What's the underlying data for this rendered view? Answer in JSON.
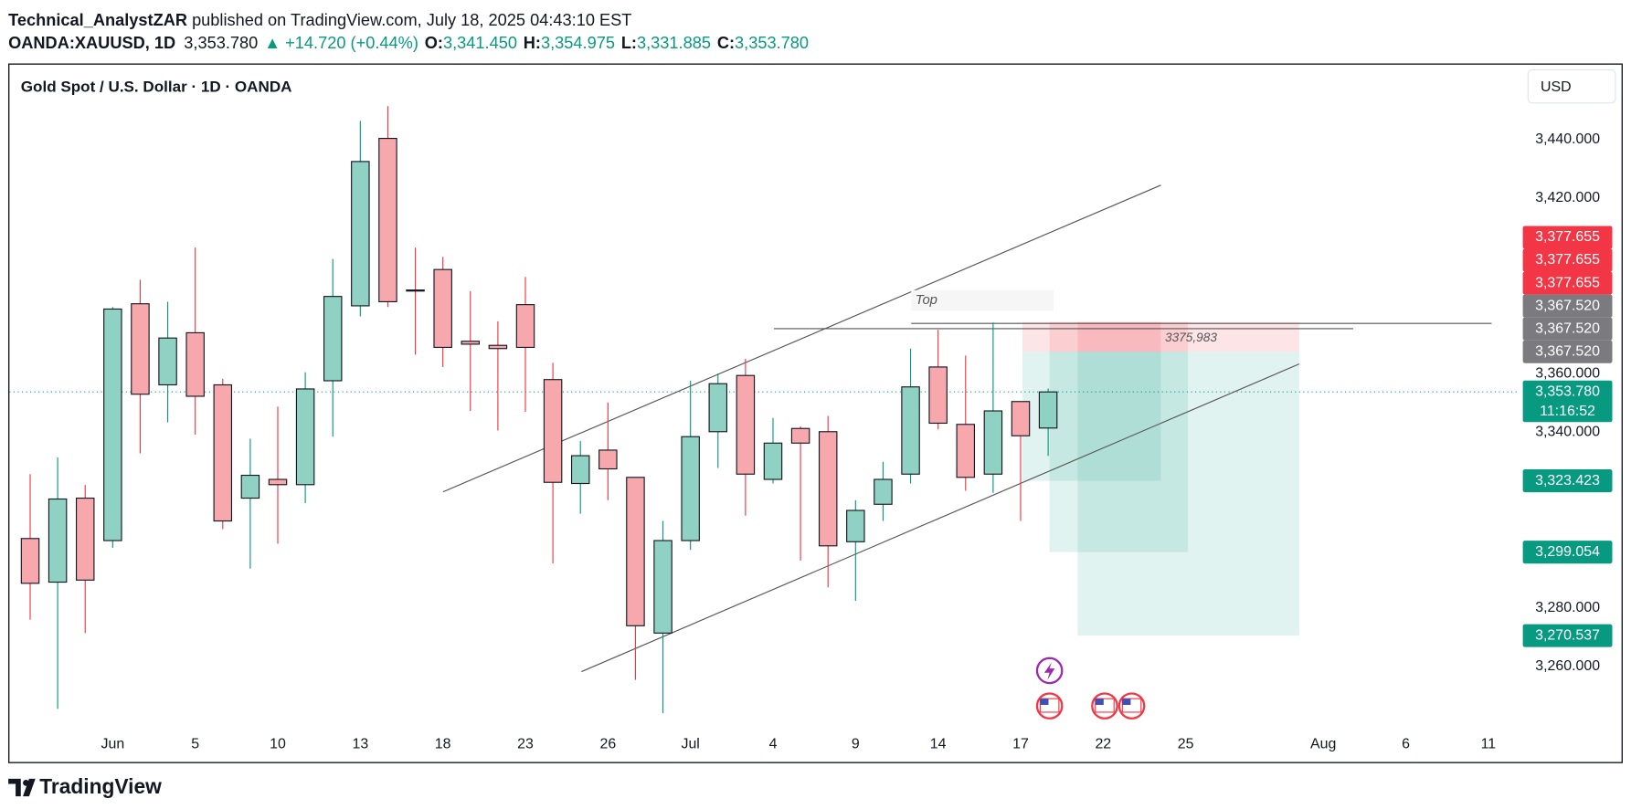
{
  "header": {
    "author": "Technical_AnalystZAR",
    "published": "published on TradingView.com, July 18, 2025 04:43:10 EST",
    "symbol": "OANDA:XAUUSD, 1D",
    "last": "3,353.780",
    "change": "▲ +14.720 (+0.44%)",
    "ohlc": [
      {
        "label": "O:",
        "value": "3,341.450"
      },
      {
        "label": "H:",
        "value": "3,354.975"
      },
      {
        "label": "L:",
        "value": "3,331.885"
      },
      {
        "label": "C:",
        "value": "3,353.780"
      }
    ]
  },
  "chart_data": {
    "type": "candlestick",
    "title": "Gold Spot / U.S. Dollar · 1D · OANDA",
    "currency": "USD",
    "categories": [
      null,
      null,
      null,
      "Jun",
      null,
      null,
      "5",
      null,
      null,
      "10",
      null,
      null,
      "13",
      null,
      null,
      "18",
      null,
      null,
      "23",
      null,
      null,
      "26",
      null,
      null,
      "Jul",
      null,
      null,
      "4",
      null,
      null,
      "9",
      null,
      null,
      "14",
      null,
      null,
      "17",
      null,
      null,
      "22",
      null,
      null,
      "25",
      null,
      null,
      null,
      null,
      "Aug",
      null,
      null,
      "6",
      null,
      null,
      "11",
      null
    ],
    "open": [
      3303.7,
      3288.8,
      3317.5,
      3303.0,
      3383.9,
      3356.2,
      3374.0,
      3356.2,
      3317.5,
      3323.9,
      3322.1,
      3357.6,
      3383.2,
      3440.4,
      3388.6,
      3395.6,
      3371.1,
      3369.7,
      3383.6,
      3358.0,
      3322.5,
      3333.9,
      3324.6,
      3271.4,
      3303.0,
      3340.2,
      3359.4,
      3323.9,
      3341.3,
      3340.2,
      3302.6,
      3315.4,
      3325.7,
      3362.3,
      3342.7,
      3325.7,
      3350.5,
      3341.45,
      null,
      null,
      null,
      null,
      null,
      null,
      null,
      null,
      null,
      null,
      null,
      null,
      null,
      null,
      null,
      null,
      null
    ],
    "high": [
      3325.7,
      3331.4,
      3322.0,
      3382.8,
      3392.1,
      3384.6,
      3403.1,
      3358.3,
      3337.8,
      3348.8,
      3360.5,
      3399.2,
      3446.4,
      3451.4,
      3403.1,
      3399.9,
      3388.2,
      3377.9,
      3393.1,
      3363.7,
      3337.0,
      3350.2,
      3324.6,
      3309.7,
      3357.6,
      3360.1,
      3365.1,
      3344.9,
      3342.0,
      3345.6,
      3316.8,
      3329.9,
      3368.6,
      3375.0,
      3366.2,
      3377.5,
      3350.5,
      3354.975,
      null,
      null,
      null,
      null,
      null,
      null,
      null,
      null,
      null,
      null,
      null,
      null,
      null,
      null,
      null,
      null,
      null
    ],
    "low": [
      3276.0,
      3245.5,
      3271.4,
      3300.5,
      3332.8,
      3343.4,
      3339.2,
      3306.9,
      3293.4,
      3301.9,
      3315.8,
      3338.5,
      3379.6,
      3382.8,
      3366.5,
      3362.3,
      3347.3,
      3340.6,
      3347.0,
      3295.2,
      3312.2,
      3316.8,
      3255.4,
      3244.0,
      3299.8,
      3327.8,
      3311.5,
      3322.5,
      3296.2,
      3287.0,
      3282.4,
      3309.7,
      3322.5,
      3341.0,
      3320.0,
      3319.3,
      3309.7,
      3331.885,
      null,
      null,
      null,
      null,
      null,
      null,
      null,
      null,
      null,
      null,
      null,
      null,
      null,
      null,
      null,
      null,
      null
    ],
    "close": [
      3288.4,
      3317.2,
      3289.5,
      3382.1,
      3353.0,
      3372.2,
      3352.3,
      3309.7,
      3325.3,
      3322.1,
      3354.8,
      3386.4,
      3432.5,
      3384.6,
      3388.4,
      3369.0,
      3370.1,
      3368.6,
      3369.0,
      3322.9,
      3332.0,
      3327.5,
      3273.9,
      3303.0,
      3338.5,
      3356.6,
      3325.7,
      3336.3,
      3336.3,
      3301.2,
      3313.3,
      3323.9,
      3355.5,
      3343.1,
      3324.6,
      3347.3,
      3338.8,
      3353.78,
      null,
      null,
      null,
      null,
      null,
      null,
      null,
      null,
      null,
      null,
      null,
      null,
      null,
      null,
      null,
      null,
      null
    ],
    "up_color": "#8fd2c4",
    "down_color": "#f7a8ad",
    "ylim": [
      3239.4,
      3464.9
    ],
    "yticks": [
      {
        "value": 3440,
        "label": "3,440.000"
      },
      {
        "value": 3420,
        "label": "3,420.000"
      },
      {
        "value": 3360,
        "label": "3,360.000"
      },
      {
        "value": 3340,
        "label": "3,340.000"
      },
      {
        "value": 3280,
        "label": "3,280.000"
      },
      {
        "value": 3260,
        "label": "3,260.000"
      }
    ],
    "grid": false,
    "price_tags": [
      {
        "value": 3377.655,
        "label": "3,377.655",
        "color": "#f23645"
      },
      {
        "value": 3377.655,
        "label": "3,377.655",
        "color": "#f23645"
      },
      {
        "value": 3377.655,
        "label": "3,377.655",
        "color": "#f23645"
      },
      {
        "value": 3367.52,
        "label": "3,367.520",
        "color": "#7b7b7f"
      },
      {
        "value": 3367.52,
        "label": "3,367.520",
        "color": "#7b7b7f"
      },
      {
        "value": 3367.52,
        "label": "3,367.520",
        "color": "#7b7b7f"
      },
      {
        "value": 3353.78,
        "label": "3,353.780",
        "color": "#089981"
      },
      {
        "value": 3323.423,
        "label": "3,323.423",
        "color": "#089981"
      },
      {
        "value": 3299.054,
        "label": "3,299.054",
        "color": "#089981"
      },
      {
        "value": 3270.537,
        "label": "3,270.537",
        "color": "#089981"
      }
    ],
    "countdown": "11:16:52",
    "annotations": {
      "top": "Top",
      "level": "3375,983"
    }
  },
  "footer": {
    "brand": "TradingView"
  }
}
